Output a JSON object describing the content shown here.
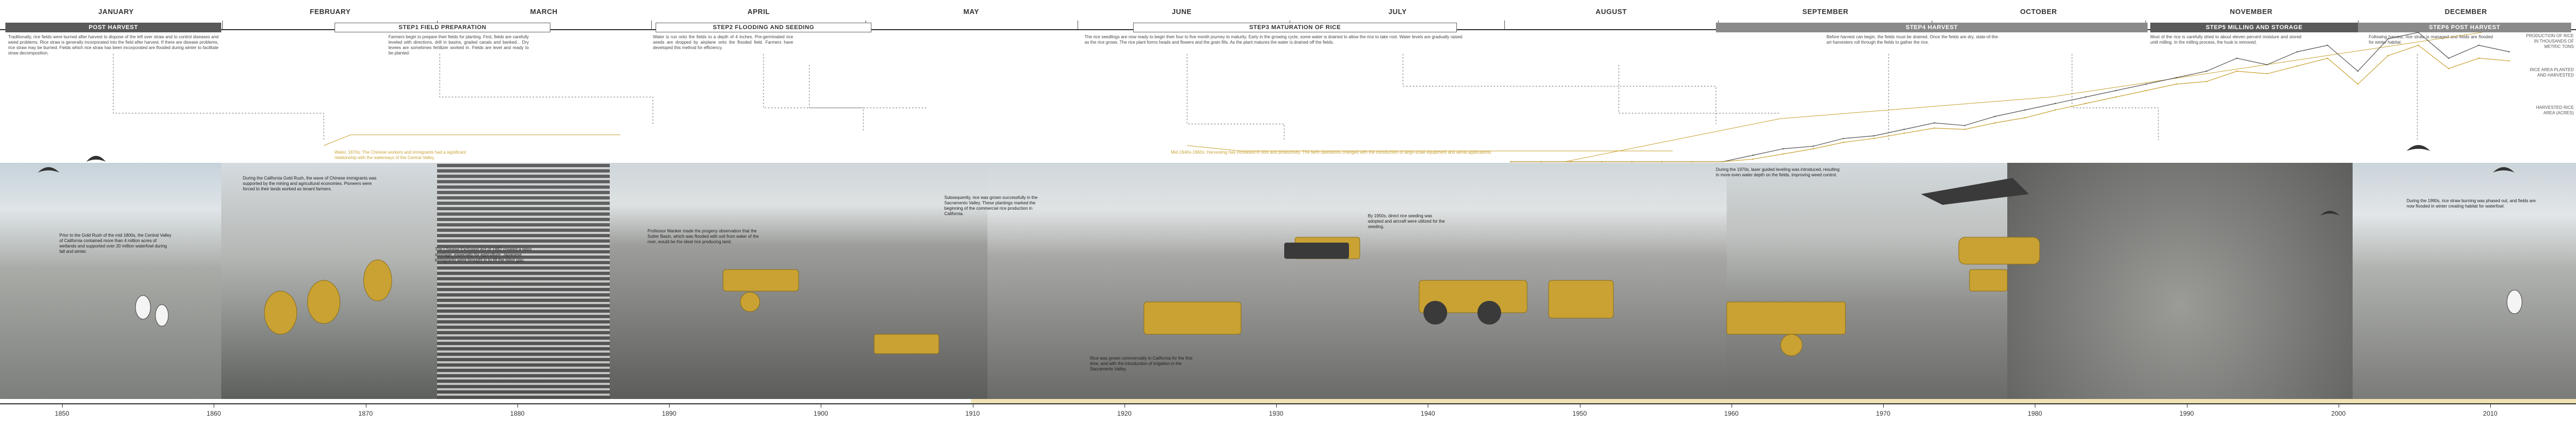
{
  "months": [
    "JANUARY",
    "FEBRUARY",
    "MARCH",
    "APRIL",
    "MAY",
    "JUNE",
    "JULY",
    "AUGUST",
    "SEPTEMBER",
    "OCTOBER",
    "NOVEMBER",
    "DECEMBER"
  ],
  "steps": [
    {
      "label": "POST HARVEST"
    },
    {
      "label": "STEP1 FIELD PREPARATION"
    },
    {
      "label": "STEP2 FLOODING AND SEEDING"
    },
    {
      "label": "STEP3 MATURATION OF RICE"
    },
    {
      "label": "STEP4 HARVEST"
    },
    {
      "label": "STEP5 MILLING AND STORAGE"
    },
    {
      "label": "STEP6 POST HARVEST"
    }
  ],
  "descriptions": [
    "Traditionally, rice fields were burned after harvest to dispose of the left over straw and to control diseases and weed problems. Rice straw is generally incorporated into the field after harvest. If there are disease problems, rice straw may be burned. Fields which rice straw has been incorporated are flooded during winter to facilitate straw decomposition.",
    "Farmers begin to prepare their fields for planting. First, fields are carefully leveled with directions, drill in basins, graded canals and banked... Dry levees are sometimes fertilizer worked in. Fields are level and ready to be planted.",
    "Water is run onto the fields to a depth of 4 inches. Pre-germinated rice seeds are dropped by airplane onto the flooded field. Farmers have developed this method for efficiency.",
    "The rice seedlings are now ready to begin their four to five month journey to maturity. Early in the growing cycle, some water is drained to allow the rice to take root. Water levels are gradually raised as the rice grows. The rice plant forms heads and flowers and the grain fills. As the plant matures the water is drained off the fields.",
    "Before harvest can begin, the fields must be drained. Once the fields are dry, state-of-the-art harvesters roll through the fields to gather the rice.",
    "Most of the rice is carefully dried to about eleven percent moisture and stored until milling. In the milling process, the husk is removed.",
    "Following harvest, rice straw is managed and fields are flooded for winter habitat."
  ],
  "captions": [
    "Prior to the Gold Rush of the mid 1800s, the Central Valley of California contained more than 4 million acres of wetlands and supported over 20 million waterfowl during fall and winter.",
    "During the California Gold Rush, the wave of Chinese immigrants was supported by the mining and agricultural economies. Pioneers were forced to their lands worked as tenant farmers.",
    "The Chinese Exclusion Act of 1882 created a labor shortage, especially for agriculture. Japanese immigrants were brought in to fill the labor gap.",
    "Rice was grown commercially in California for the first time, and with the introduction of irrigation in the Sacramento Valley.",
    "Professor Manker made the progeny observation that the Sutter Basin, which was flooded with soil from water of the river, would be the ideal rice producing land.",
    "Subsequently, rice was grown successfully in the Sacramento Valley. These plantings marked the beginning of the commercial rice production in California.",
    "By 1950s, direct rice seeding was adopted and aircraft were utilized for the seeding.",
    "During the 1970s, laser guided leveling was introduced, resulting in more even water depth on the fields, improving weed control.",
    "During the 1990s, rice straw burning was phased out, and fields are now flooded in winter creating habitat for waterfowl."
  ],
  "gold_notes": [
    "Water, 1870s: The Chinese workers and immigrants had a significant relationship with the waterways of the Central Valley.",
    "Mid-1940s-1960s: Harvesting has increased in size and productivity. The farm operations changed with the introduction of large-scale equipment and aerial applications."
  ],
  "chart_labels": [
    "PRODUCTION OF RICE IN THOUSANDS OF METRIC TONS",
    "RICE AREA PLANTED AND HARVESTED",
    "HARVESTED RICE AREA (ACRES)"
  ],
  "years": [
    "1850",
    "1860",
    "1870",
    "1880",
    "1890",
    "1900",
    "1910",
    "1920",
    "1930",
    "1940",
    "1950",
    "1960",
    "1970",
    "1980",
    "1990",
    "2000",
    "2010"
  ],
  "colors": {
    "gold": "#c9a233",
    "bar_dark": "#5a5a5a",
    "bar_mid": "#8a8a8a",
    "axis": "#333333"
  },
  "chart_data": {
    "type": "line",
    "series": [
      {
        "values": [
          0,
          0,
          0,
          0,
          0,
          0,
          0,
          0,
          0.05,
          0.1,
          0.12,
          0.18,
          0.2,
          0.25,
          0.3,
          0.28,
          0.35,
          0.4,
          0.45,
          0.5,
          0.55,
          0.6,
          0.65,
          0.7,
          0.8,
          0.75,
          0.85,
          0.9,
          0.7,
          0.95,
          1.0,
          0.8,
          0.9,
          0.85
        ]
      },
      {
        "values": [
          0,
          0,
          0,
          0,
          0,
          0,
          0,
          0,
          0.02,
          0.06,
          0.1,
          0.15,
          0.18,
          0.22,
          0.26,
          0.25,
          0.3,
          0.34,
          0.4,
          0.45,
          0.5,
          0.55,
          0.6,
          0.62,
          0.7,
          0.68,
          0.74,
          0.8,
          0.6,
          0.82,
          0.9,
          0.72,
          0.8,
          0.78
        ]
      }
    ]
  }
}
